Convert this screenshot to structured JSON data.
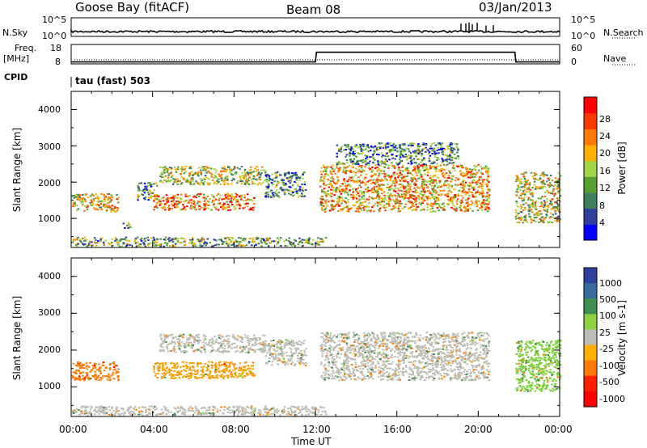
{
  "header": {
    "station": "Goose Bay (fitACF)",
    "beam": "Beam 08",
    "date": "03/Jan/2013"
  },
  "top_panel": {
    "nsky_label": "N.Sky",
    "nsearch_label": "N.Search",
    "freq_label": "Freq.",
    "freq_unit": "[MHz]",
    "nave_label": "Nave",
    "cpid_label": "CPID",
    "cpid_value": "tau (fast) 503",
    "noise_ticks": [
      "10^5",
      "10^0"
    ],
    "freq_ticks": [
      "18",
      "8"
    ],
    "nave_ticks": [
      "60",
      "0"
    ]
  },
  "colors": {
    "scale": [
      "#0000ff",
      "#2e3f9e",
      "#3f7f5f",
      "#55a030",
      "#9fd54a",
      "#ffb000",
      "#ff7a00",
      "#ff3a00",
      "#ff0000"
    ],
    "ground": "#bdbdb5"
  },
  "chart_data": [
    {
      "type": "heatmap",
      "title": "Power",
      "xlabel": "Time UT",
      "ylabel": "Slant Range [km]",
      "x_ticks": [
        "00:00",
        "04:00",
        "08:00",
        "12:00",
        "16:00",
        "20:00",
        "00:00"
      ],
      "y_ticks": [
        "1000",
        "2000",
        "3000",
        "4000"
      ],
      "ylim": [
        200,
        4500
      ],
      "colorbar_label": "Power [dB]",
      "colorbar_ticks": [
        "4",
        "8",
        "12",
        "16",
        "20",
        "24",
        "28"
      ],
      "colorbar_range": [
        0,
        32
      ],
      "scatter_regions": [
        {
          "t": [
            0.0,
            2.3
          ],
          "r": [
            1200,
            1700
          ],
          "level": 0.55
        },
        {
          "t": [
            3.2,
            4.2
          ],
          "r": [
            1500,
            2000
          ],
          "level": 0.35
        },
        {
          "t": [
            4.0,
            9.0
          ],
          "r": [
            1250,
            1700
          ],
          "level": 0.7
        },
        {
          "t": [
            4.3,
            9.5
          ],
          "r": [
            1950,
            2450
          ],
          "level": 0.5
        },
        {
          "t": [
            9.5,
            11.5
          ],
          "r": [
            1600,
            2300
          ],
          "level": 0.3
        },
        {
          "t": [
            12.2,
            20.5
          ],
          "r": [
            1200,
            2500
          ],
          "level": 0.65
        },
        {
          "t": [
            13.0,
            19.0
          ],
          "r": [
            2500,
            3100
          ],
          "level": 0.3
        },
        {
          "t": [
            21.8,
            24.0
          ],
          "r": [
            900,
            2300
          ],
          "level": 0.5
        },
        {
          "t": [
            0.0,
            12.5
          ],
          "r": [
            250,
            500
          ],
          "level": 0.4
        },
        {
          "t": [
            2.5,
            3.0
          ],
          "r": [
            750,
            900
          ],
          "level": 0.3
        }
      ]
    },
    {
      "type": "heatmap",
      "title": "Velocity",
      "xlabel": "Time UT",
      "ylabel": "Slant Range [km]",
      "x_ticks": [
        "00:00",
        "04:00",
        "08:00",
        "12:00",
        "16:00",
        "20:00",
        "00:00"
      ],
      "y_ticks": [
        "1000",
        "2000",
        "3000",
        "4000"
      ],
      "ylim": [
        200,
        4500
      ],
      "colorbar_label": "Velocity [m s-1]",
      "colorbar_ticks": [
        "1000",
        "500",
        "100",
        "25",
        "-25",
        "-100",
        "-500",
        "-1000"
      ],
      "scatter_regions": [
        {
          "t": [
            0.0,
            2.3
          ],
          "r": [
            1200,
            1700
          ],
          "velocity": -300
        },
        {
          "t": [
            4.0,
            9.0
          ],
          "r": [
            1250,
            1700
          ],
          "velocity": -80
        },
        {
          "t": [
            4.3,
            9.5
          ],
          "r": [
            1950,
            2450
          ],
          "velocity": 0
        },
        {
          "t": [
            9.5,
            11.5
          ],
          "r": [
            1600,
            2300
          ],
          "velocity": 0
        },
        {
          "t": [
            12.2,
            20.5
          ],
          "r": [
            1200,
            2500
          ],
          "velocity": 0
        },
        {
          "t": [
            21.8,
            24.0
          ],
          "r": [
            900,
            2300
          ],
          "velocity": 50
        },
        {
          "t": [
            0.0,
            12.5
          ],
          "r": [
            250,
            500
          ],
          "velocity": 0
        }
      ]
    },
    {
      "type": "line",
      "title": "Freq.",
      "x_hours": [
        0,
        12,
        12.05,
        21.8,
        21.85,
        24
      ],
      "values": [
        9,
        9,
        14,
        14,
        9,
        9
      ],
      "ylim": [
        8,
        18
      ]
    }
  ]
}
